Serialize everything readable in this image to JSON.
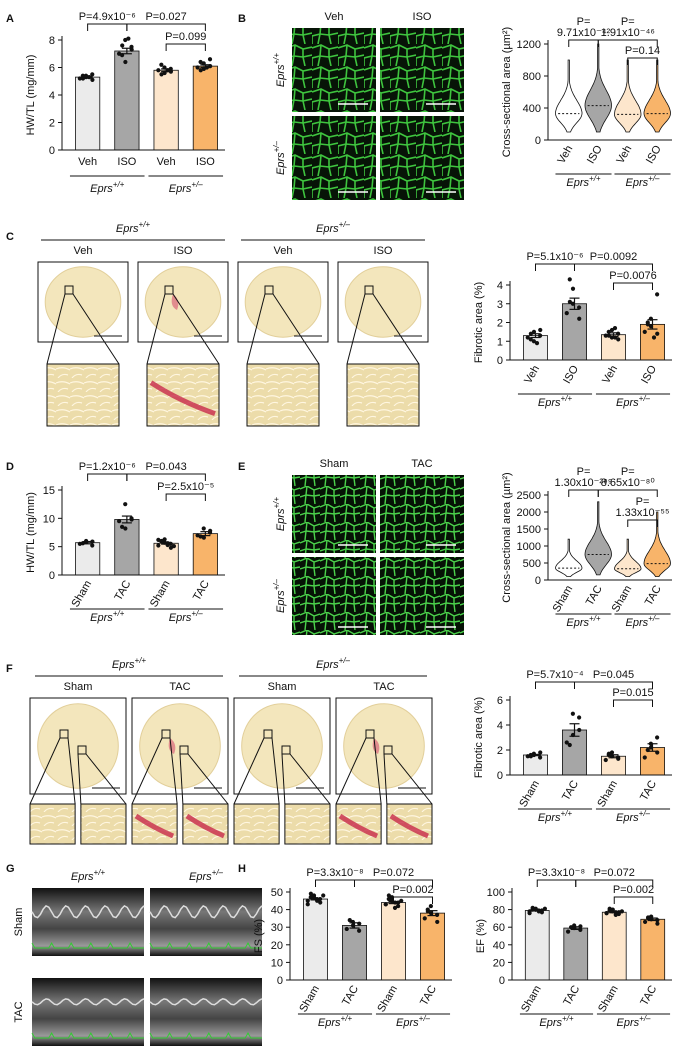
{
  "panel_letters": [
    "A",
    "B",
    "C",
    "D",
    "E",
    "F",
    "G",
    "H"
  ],
  "images": {
    "B": {
      "columns": [
        "Veh",
        "ISO"
      ],
      "rows": [
        {
          "gene": "Eprs",
          "allele": "+/+"
        },
        {
          "gene": "Eprs",
          "allele": "+/–"
        }
      ]
    },
    "C": {
      "groups": [
        {
          "gene": "Eprs",
          "allele": "+/+"
        },
        {
          "gene": "Eprs",
          "allele": "+/–"
        }
      ],
      "columns": [
        "Veh",
        "ISO",
        "Veh",
        "ISO"
      ]
    },
    "E": {
      "columns": [
        "Sham",
        "TAC"
      ],
      "rows": [
        {
          "gene": "Eprs",
          "allele": "+/+"
        },
        {
          "gene": "Eprs",
          "allele": "+/–"
        }
      ]
    },
    "F": {
      "groups": [
        {
          "gene": "Eprs",
          "allele": "+/+"
        },
        {
          "gene": "Eprs",
          "allele": "+/–"
        }
      ],
      "columns": [
        "Sham",
        "TAC",
        "Sham",
        "TAC"
      ]
    },
    "G": {
      "columns": [
        {
          "gene": "Eprs",
          "allele": "+/+"
        },
        {
          "gene": "Eprs",
          "allele": "+/–"
        }
      ],
      "rows": [
        "Sham",
        "TAC"
      ]
    }
  },
  "chart_data": [
    {
      "type": "bar",
      "ylabel": "HW/TL (mg/mm)",
      "categories": [
        "Veh",
        "ISO",
        "Veh",
        "ISO"
      ],
      "groups": [
        {
          "gene": "Eprs",
          "allele": "+/+"
        },
        {
          "gene": "Eprs",
          "allele": "+/–"
        }
      ],
      "colors": [
        "#ebebeb",
        "#a6a6a6",
        "#fde6cc",
        "#f8b46a"
      ],
      "values": [
        5.3,
        7.2,
        5.8,
        6.1
      ],
      "errors": [
        0.05,
        0.2,
        0.1,
        0.1
      ],
      "points": [
        [
          5.2,
          5.4,
          5.3,
          5.5,
          5.1,
          5.4,
          5.2,
          5.3
        ],
        [
          7.0,
          8.0,
          6.4,
          7.5,
          7.3,
          6.9,
          7.6,
          8.1
        ],
        [
          5.8,
          6.0,
          5.6,
          5.9,
          5.7,
          6.2,
          5.5,
          5.8
        ],
        [
          6.0,
          6.3,
          5.9,
          6.6,
          6.1,
          6.4,
          5.8,
          6.0
        ]
      ],
      "ylim": [
        0,
        8
      ],
      "yticks": [
        0,
        2,
        4,
        6,
        8
      ],
      "comparisons": [
        "P=4.9x10⁻⁶",
        "P=0.027",
        "P=0.099"
      ]
    },
    {
      "type": "violin",
      "ylabel": "Cross-sectional area (µm²)",
      "categories": [
        "Veh",
        "ISO",
        "Veh",
        "ISO"
      ],
      "groups": [
        {
          "gene": "Eprs",
          "allele": "+/+"
        },
        {
          "gene": "Eprs",
          "allele": "+/–"
        }
      ],
      "colors": [
        "#ffffff",
        "#a6a6a6",
        "#fde6cc",
        "#f8b46a"
      ],
      "median": [
        330,
        430,
        320,
        330
      ],
      "min": [
        100,
        100,
        100,
        100
      ],
      "max": [
        1000,
        1200,
        1000,
        1000
      ],
      "ylim": [
        0,
        1200
      ],
      "yticks": [
        0,
        400,
        800,
        1200
      ],
      "comparisons": [
        [
          "P=",
          "9.71x10⁻⁴²"
        ],
        [
          "P=",
          "1.91x10⁻⁴⁶"
        ],
        "P=0.14"
      ]
    },
    {
      "type": "bar",
      "ylabel": "Fibrotic area (%)",
      "categories": [
        "Veh",
        "ISO",
        "Veh",
        "ISO"
      ],
      "groups": [
        {
          "gene": "Eprs",
          "allele": "+/+"
        },
        {
          "gene": "Eprs",
          "allele": "+/–"
        }
      ],
      "colors": [
        "#ebebeb",
        "#a6a6a6",
        "#fde6cc",
        "#f8b46a"
      ],
      "values": [
        1.3,
        3.0,
        1.35,
        1.9
      ],
      "errors": [
        0.1,
        0.3,
        0.1,
        0.25
      ],
      "points": [
        [
          1.2,
          1.0,
          1.5,
          1.3,
          1.6,
          1.1,
          1.4,
          0.9
        ],
        [
          2.5,
          3.0,
          3.8,
          2.8,
          2.2,
          4.3,
          3.1
        ],
        [
          1.3,
          1.2,
          1.6,
          1.4,
          1.1,
          1.5,
          1.3,
          1.7,
          1.2
        ],
        [
          1.5,
          2.2,
          1.8,
          3.5,
          1.4,
          2.0,
          1.9,
          1.2
        ]
      ],
      "ylim": [
        0,
        4
      ],
      "yticks": [
        0,
        1,
        2,
        3,
        4
      ],
      "comparisons": [
        "P=5.1x10⁻⁶",
        "P=0.0092",
        "P=0.0076"
      ]
    },
    {
      "type": "bar",
      "ylabel": "HW/TL (mg/mm)",
      "categories": [
        "Sham",
        "TAC",
        "Sham",
        "TAC"
      ],
      "groups": [
        {
          "gene": "Eprs",
          "allele": "+/+"
        },
        {
          "gene": "Eprs",
          "allele": "+/–"
        }
      ],
      "colors": [
        "#ebebeb",
        "#a6a6a6",
        "#fde6cc",
        "#f8b46a"
      ],
      "values": [
        5.7,
        9.8,
        5.6,
        7.3
      ],
      "errors": [
        0.2,
        0.6,
        0.15,
        0.35
      ],
      "points": [
        [
          5.5,
          5.8,
          6.0,
          5.2,
          5.9,
          5.6
        ],
        [
          9.5,
          12.5,
          8.2,
          10.0,
          9.8,
          8.5
        ],
        [
          5.2,
          5.8,
          6.3,
          5.5,
          4.8,
          5.9,
          6.0,
          5.3,
          5.6,
          5.1,
          6.2,
          5.7
        ],
        [
          7.0,
          8.2,
          6.6,
          7.5,
          7.8,
          6.8
        ]
      ],
      "ylim": [
        0,
        15
      ],
      "yticks": [
        0,
        5,
        10,
        15
      ],
      "comparisons": [
        "P=1.2x10⁻⁶",
        "P=0.043",
        "P=2.5x10⁻⁵"
      ]
    },
    {
      "type": "violin",
      "ylabel": "Cross-sectional area (µm²)",
      "categories": [
        "Sham",
        "TAC",
        "Sham",
        "TAC"
      ],
      "groups": [
        {
          "gene": "Eprs",
          "allele": "+/+"
        },
        {
          "gene": "Eprs",
          "allele": "+/–"
        }
      ],
      "colors": [
        "#ffffff",
        "#a6a6a6",
        "#fde6cc",
        "#f8b46a"
      ],
      "median": [
        350,
        750,
        330,
        480
      ],
      "min": [
        100,
        150,
        100,
        100
      ],
      "max": [
        1200,
        2300,
        1200,
        2000
      ],
      "ylim": [
        0,
        2500
      ],
      "yticks": [
        0,
        500,
        1000,
        1500,
        2000,
        2500
      ],
      "comparisons": [
        [
          "P=",
          "1.30x10⁻²⁹⁹"
        ],
        [
          "P=",
          "8.65x10⁻⁸⁰"
        ],
        [
          "P=",
          "1.33x10⁻⁵⁵"
        ]
      ]
    },
    {
      "type": "bar",
      "ylabel": "Fibrotic area (%)",
      "categories": [
        "Sham",
        "TAC",
        "Sham",
        "TAC"
      ],
      "groups": [
        {
          "gene": "Eprs",
          "allele": "+/+"
        },
        {
          "gene": "Eprs",
          "allele": "+/–"
        }
      ],
      "colors": [
        "#ebebeb",
        "#a6a6a6",
        "#fde6cc",
        "#f8b46a"
      ],
      "values": [
        1.6,
        3.6,
        1.5,
        2.2
      ],
      "errors": [
        0.05,
        0.5,
        0.12,
        0.3
      ],
      "points": [
        [
          1.5,
          1.7,
          1.6,
          1.4,
          1.8,
          1.6,
          1.5
        ],
        [
          2.6,
          4.9,
          3.2,
          4.6,
          3.6,
          2.4
        ],
        [
          1.2,
          1.5,
          1.8,
          1.4,
          1.3,
          1.6,
          1.7
        ],
        [
          1.4,
          2.5,
          2.2,
          3.0,
          1.8,
          2.0
        ]
      ],
      "ylim": [
        0,
        6
      ],
      "yticks": [
        0,
        2,
        4,
        6
      ],
      "comparisons": [
        "P=5.7x10⁻⁴",
        "P=0.045",
        "P=0.015"
      ]
    },
    {
      "type": "bar",
      "ylabel": "FS (%)",
      "categories": [
        "Sham",
        "TAC",
        "Sham",
        "TAC"
      ],
      "groups": [
        {
          "gene": "Eprs",
          "allele": "+/+"
        },
        {
          "gene": "Eprs",
          "allele": "+/–"
        }
      ],
      "colors": [
        "#ebebeb",
        "#a6a6a6",
        "#fde6cc",
        "#f8b46a"
      ],
      "values": [
        46,
        31,
        44,
        38
      ],
      "errors": [
        0.5,
        1.5,
        0.6,
        1.4
      ],
      "points": [
        [
          45,
          47,
          48,
          46,
          44,
          47,
          49,
          46,
          45,
          48,
          43,
          47
        ],
        [
          29,
          33,
          31,
          28,
          32,
          34
        ],
        [
          43,
          45,
          47,
          42,
          44,
          46,
          48,
          41,
          44,
          45,
          43,
          46
        ],
        [
          35,
          42,
          38,
          37,
          33,
          40,
          39
        ]
      ],
      "ylim": [
        0,
        50
      ],
      "yticks": [
        0,
        10,
        20,
        30,
        40,
        50
      ],
      "comparisons": [
        "P=3.3x10⁻⁸",
        "P=0.072",
        "P=0.002"
      ]
    },
    {
      "type": "bar",
      "ylabel": "EF (%)",
      "categories": [
        "Sham",
        "TAC",
        "Sham",
        "TAC"
      ],
      "groups": [
        {
          "gene": "Eprs",
          "allele": "+/+"
        },
        {
          "gene": "Eprs",
          "allele": "+/–"
        }
      ],
      "colors": [
        "#ebebeb",
        "#a6a6a6",
        "#fde6cc",
        "#f8b46a"
      ],
      "values": [
        79,
        59,
        77,
        69
      ],
      "errors": [
        0.5,
        1.5,
        0.6,
        1.4
      ],
      "points": [
        [
          78,
          80,
          81,
          79,
          77,
          80,
          82,
          79,
          78,
          81,
          76,
          80
        ],
        [
          55,
          62,
          59,
          57,
          61,
          60
        ],
        [
          76,
          78,
          80,
          75,
          77,
          79,
          81,
          74,
          77,
          78,
          76,
          79
        ],
        [
          66,
          72,
          69,
          68,
          64,
          71,
          70
        ]
      ],
      "ylim": [
        0,
        100
      ],
      "yticks": [
        0,
        20,
        40,
        60,
        80,
        100
      ],
      "comparisons": [
        "P=3.3x10⁻⁸",
        "P=0.072",
        "P=0.002"
      ]
    }
  ]
}
